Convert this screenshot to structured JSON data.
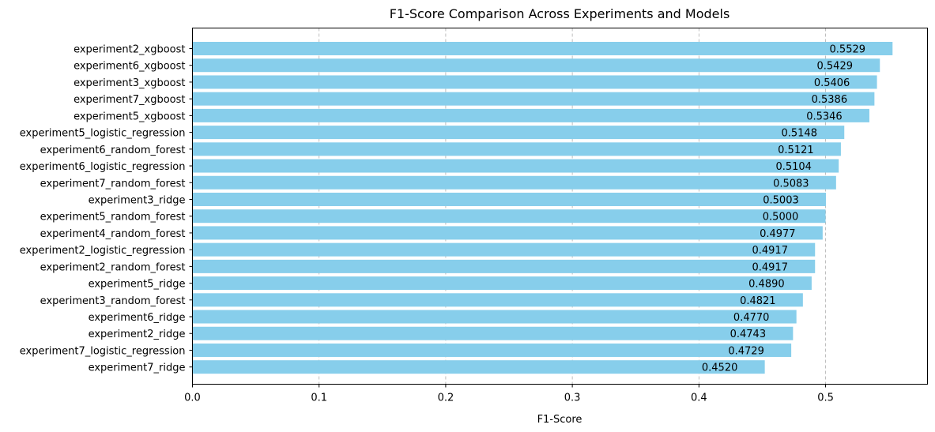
{
  "chart_data": {
    "type": "bar",
    "orientation": "horizontal",
    "title": "F1-Score Comparison Across Experiments and Models",
    "xlabel": "F1-Score",
    "ylabel": "",
    "xlim": [
      0,
      0.5805
    ],
    "xticks": [
      0.0,
      0.1,
      0.2,
      0.3,
      0.4,
      0.5
    ],
    "xtick_labels": [
      "0.0",
      "0.1",
      "0.2",
      "0.3",
      "0.4",
      "0.5"
    ],
    "grid": "x-dashed",
    "bar_color": "#87ceeb",
    "categories": [
      "experiment2_xgboost",
      "experiment6_xgboost",
      "experiment3_xgboost",
      "experiment7_xgboost",
      "experiment5_xgboost",
      "experiment5_logistic_regression",
      "experiment6_random_forest",
      "experiment6_logistic_regression",
      "experiment7_random_forest",
      "experiment3_ridge",
      "experiment5_random_forest",
      "experiment4_random_forest",
      "experiment2_logistic_regression",
      "experiment2_random_forest",
      "experiment5_ridge",
      "experiment3_random_forest",
      "experiment6_ridge",
      "experiment2_ridge",
      "experiment7_logistic_regression",
      "experiment7_ridge"
    ],
    "values": [
      0.5529,
      0.5429,
      0.5406,
      0.5386,
      0.5346,
      0.5148,
      0.5121,
      0.5104,
      0.5083,
      0.5003,
      0.5,
      0.4977,
      0.4917,
      0.4917,
      0.489,
      0.4821,
      0.477,
      0.4743,
      0.4729,
      0.452
    ],
    "value_labels": [
      "0.5529",
      "0.5429",
      "0.5406",
      "0.5386",
      "0.5346",
      "0.5148",
      "0.5121",
      "0.5104",
      "0.5083",
      "0.5003",
      "0.5000",
      "0.4977",
      "0.4917",
      "0.4917",
      "0.4890",
      "0.4821",
      "0.4770",
      "0.4743",
      "0.4729",
      "0.4520"
    ]
  }
}
